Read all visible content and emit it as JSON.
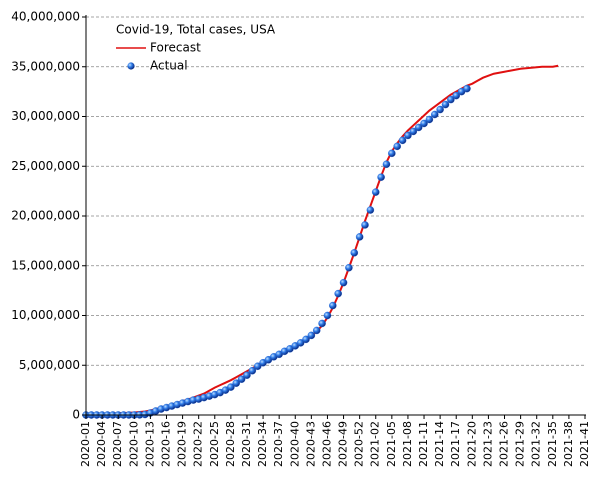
{
  "chart_data": {
    "type": "line",
    "legend_title": "Covid-19, Total cases, USA",
    "legend": "upper-left",
    "grid": true,
    "categories": [
      "2020-01",
      null,
      null,
      "2020-04",
      null,
      null,
      "2020-07",
      null,
      null,
      "2020-10",
      null,
      null,
      "2020-13",
      null,
      null,
      "2020-16",
      null,
      null,
      "2020-19",
      null,
      null,
      "2020-22",
      null,
      null,
      "2020-25",
      null,
      null,
      "2020-28",
      null,
      null,
      "2020-31",
      null,
      null,
      "2020-34",
      null,
      null,
      "2020-37",
      null,
      null,
      "2020-40",
      null,
      null,
      "2020-43",
      null,
      null,
      "2020-46",
      null,
      null,
      "2020-49",
      null,
      null,
      "2020-52",
      null,
      null,
      "2021-02",
      null,
      null,
      "2021-05",
      null,
      null,
      "2021-08",
      null,
      null,
      "2021-11",
      null,
      null,
      "2021-14",
      null,
      null,
      "2021-17",
      null,
      null,
      "2021-20",
      null,
      null,
      "2021-23",
      null,
      null,
      "2021-26",
      null,
      null,
      "2021-29",
      null,
      null,
      "2021-32",
      null,
      null,
      "2021-35",
      null,
      null,
      "2021-38",
      null,
      null,
      "2021-41"
    ],
    "ylim": [
      0,
      40000000
    ],
    "yticks": [
      0,
      {
        "value": 5000000,
        "label": "5,000,000"
      },
      {
        "value": 10000000,
        "label": "10,000,000"
      },
      {
        "value": 15000000,
        "label": "15,000,000"
      },
      {
        "value": 20000000,
        "label": "20,000,000"
      },
      {
        "value": 25000000,
        "label": "25,000,000"
      },
      {
        "value": 30000000,
        "label": "30,000,000"
      },
      {
        "value": 35000000,
        "label": "35,000,000"
      },
      {
        "value": 40000000,
        "label": "40,000,000"
      }
    ],
    "series": [
      {
        "name": "Forecast",
        "style": "line",
        "color": "#e01010",
        "values": [
          100000,
          100000,
          100000,
          100000,
          120000,
          150000,
          170000,
          200000,
          220000,
          250000,
          300000,
          350000,
          450000,
          600000,
          750000,
          900000,
          1050000,
          1200000,
          1400000,
          1550000,
          1750000,
          1950000,
          2150000,
          2450000,
          2750000,
          3000000,
          3250000,
          3500000,
          3800000,
          4100000,
          4400000,
          4700000,
          5000000,
          5300000,
          5550000,
          5800000,
          6050000,
          6300000,
          6550000,
          6850000,
          7150000,
          7500000,
          7900000,
          8400000,
          9000000,
          9800000,
          10800000,
          12000000,
          13300000,
          14800000,
          16300000,
          17900000,
          19500000,
          21000000,
          22500000,
          24000000,
          25400000,
          26500000,
          27300000,
          28000000,
          28600000,
          29100000,
          29600000,
          30100000,
          30600000,
          31000000,
          31400000,
          31800000,
          32200000,
          32500000,
          32800000,
          33100000,
          33300000,
          33600000,
          33900000,
          34100000,
          34300000,
          34400000,
          34500000,
          34600000,
          34700000,
          34800000,
          34850000,
          34900000,
          34950000,
          35000000,
          35000000,
          35000000,
          35100000,
          null,
          null,
          null,
          null,
          null
        ]
      },
      {
        "name": "Actual",
        "style": "markers",
        "color": "#1f5fd0",
        "values": [
          0,
          0,
          0,
          0,
          0,
          0,
          0,
          0,
          0,
          1000,
          10000,
          50000,
          200000,
          400000,
          600000,
          750000,
          900000,
          1050000,
          1200000,
          1350000,
          1500000,
          1600000,
          1750000,
          1900000,
          2050000,
          2250000,
          2500000,
          2800000,
          3200000,
          3600000,
          4000000,
          4450000,
          4900000,
          5250000,
          5550000,
          5850000,
          6100000,
          6400000,
          6650000,
          6950000,
          7250000,
          7600000,
          8000000,
          8500000,
          9200000,
          10000000,
          11000000,
          12200000,
          13300000,
          14800000,
          16300000,
          17900000,
          19100000,
          20600000,
          22400000,
          23900000,
          25200000,
          26300000,
          27000000,
          27600000,
          28100000,
          28500000,
          28900000,
          29300000,
          29700000,
          30200000,
          30700000,
          31200000,
          31700000,
          32100000,
          32500000,
          32800000,
          null,
          null,
          null,
          null,
          null,
          null,
          null,
          null,
          null,
          null,
          null,
          null,
          null,
          null,
          null,
          null,
          null,
          null,
          null,
          null,
          null,
          null
        ]
      }
    ]
  }
}
